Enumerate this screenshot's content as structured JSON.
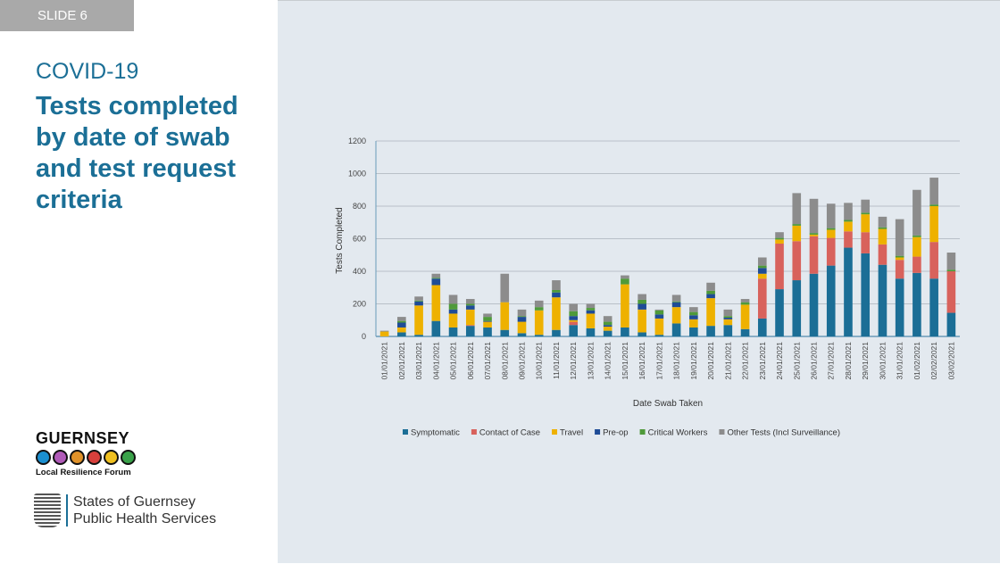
{
  "slide_label": "SLIDE 6",
  "subtitle": "COVID-19",
  "title": "Tests completed by date of swab and test request criteria",
  "logos": {
    "lrf_name": "GUERNSEY",
    "lrf_sub": "Local Resilience Forum",
    "sog_line1": "States of Guernsey",
    "sog_line2": "Public Health Services"
  },
  "chart_data": {
    "type": "bar",
    "stacked": true,
    "title": "",
    "xlabel": "Date Swab Taken",
    "ylabel": "Tests Completed",
    "ylim": [
      0,
      1200
    ],
    "yticks": [
      0,
      200,
      400,
      600,
      800,
      1000,
      1200
    ],
    "grid": true,
    "legend": "bottom",
    "categories": [
      "01/01/2021",
      "02/01/2021",
      "03/01/2021",
      "04/01/2021",
      "05/01/2021",
      "06/01/2021",
      "07/01/2021",
      "08/01/2021",
      "09/01/2021",
      "10/01/2021",
      "11/01/2021",
      "12/01/2021",
      "13/01/2021",
      "14/01/2021",
      "15/01/2021",
      "16/01/2021",
      "17/01/2021",
      "18/01/2021",
      "19/01/2021",
      "20/01/2021",
      "21/01/2021",
      "22/01/2021",
      "23/01/2021",
      "24/01/2021",
      "25/01/2021",
      "26/01/2021",
      "27/01/2021",
      "28/01/2021",
      "29/01/2021",
      "30/01/2021",
      "31/01/2021",
      "01/02/2021",
      "02/02/2021",
      "03/02/2021"
    ],
    "series": [
      {
        "name": "Symptomatic",
        "color": "#1b6e96",
        "values": [
          0,
          25,
          10,
          95,
          55,
          65,
          55,
          40,
          20,
          10,
          40,
          70,
          50,
          35,
          55,
          25,
          10,
          80,
          55,
          65,
          70,
          45,
          110,
          290,
          345,
          385,
          435,
          545,
          510,
          440,
          355,
          390,
          355,
          145
        ]
      },
      {
        "name": "Contact of Case",
        "color": "#d8625c",
        "values": [
          0,
          0,
          0,
          0,
          0,
          5,
          0,
          0,
          0,
          0,
          0,
          20,
          0,
          0,
          0,
          0,
          0,
          0,
          0,
          0,
          0,
          0,
          245,
          280,
          240,
          230,
          170,
          100,
          130,
          125,
          115,
          100,
          225,
          255
        ]
      },
      {
        "name": "Travel",
        "color": "#eeb100",
        "values": [
          30,
          30,
          180,
          220,
          85,
          95,
          35,
          170,
          70,
          150,
          200,
          10,
          90,
          25,
          265,
          140,
          100,
          100,
          50,
          170,
          35,
          150,
          30,
          25,
          95,
          10,
          50,
          60,
          110,
          95,
          15,
          120,
          220,
          0
        ]
      },
      {
        "name": "Pre-op",
        "color": "#1f4c96",
        "values": [
          0,
          30,
          25,
          40,
          25,
          25,
          5,
          0,
          30,
          0,
          30,
          25,
          20,
          10,
          0,
          35,
          25,
          30,
          25,
          25,
          10,
          0,
          35,
          0,
          0,
          0,
          0,
          0,
          0,
          0,
          0,
          0,
          0,
          0
        ]
      },
      {
        "name": "Critical Workers",
        "color": "#4f9a3a",
        "values": [
          0,
          10,
          5,
          5,
          35,
          10,
          25,
          0,
          5,
          20,
          15,
          30,
          15,
          20,
          35,
          25,
          25,
          5,
          20,
          20,
          10,
          15,
          15,
          10,
          10,
          10,
          10,
          10,
          10,
          10,
          10,
          10,
          10,
          10
        ]
      },
      {
        "name": "Other Tests (Incl Surveillance)",
        "color": "#8c8c8c",
        "values": [
          5,
          25,
          25,
          25,
          55,
          30,
          20,
          175,
          40,
          40,
          60,
          45,
          25,
          35,
          20,
          35,
          5,
          40,
          30,
          50,
          40,
          20,
          50,
          35,
          190,
          210,
          150,
          105,
          80,
          65,
          225,
          280,
          165,
          105
        ]
      }
    ]
  }
}
